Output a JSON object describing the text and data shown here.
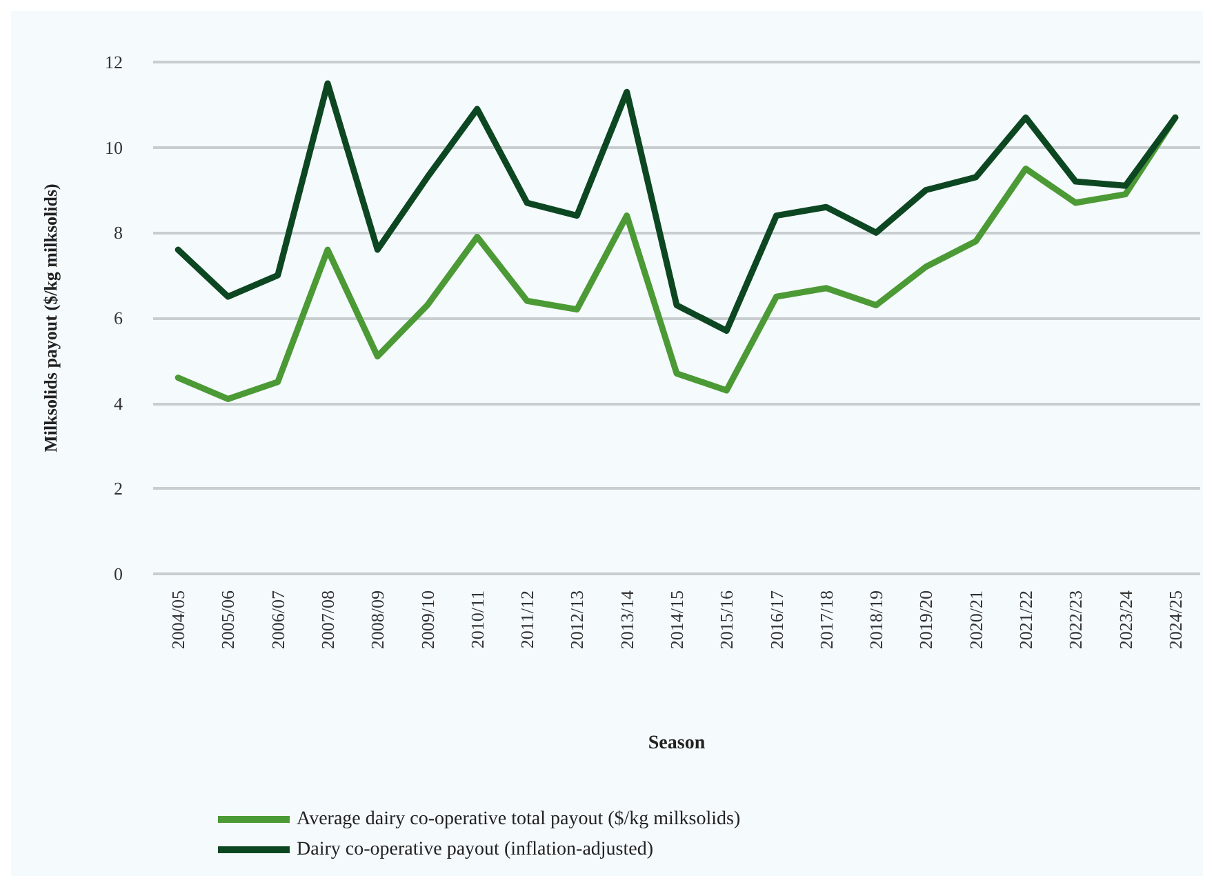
{
  "chart_data": {
    "type": "line",
    "xlabel": "Season",
    "ylabel": "Milksolids payout ($/kg milksolids)",
    "categories": [
      "2004/05",
      "2005/06",
      "2006/07",
      "2007/08",
      "2008/09",
      "2009/10",
      "2010/11",
      "2011/12",
      "2012/13",
      "2013/14",
      "2014/15",
      "2015/16",
      "2016/17",
      "2017/18",
      "2018/19",
      "2019/20",
      "2020/21",
      "2021/22",
      "2022/23",
      "2023/24",
      "2024/25"
    ],
    "series": [
      {
        "name": "Average dairy co-operative total payout ($/kg milksolids)",
        "color": "#4c9a35",
        "values": [
          4.6,
          4.1,
          4.5,
          7.6,
          5.1,
          6.3,
          7.9,
          6.4,
          6.2,
          8.4,
          4.7,
          4.3,
          6.5,
          6.7,
          6.3,
          7.2,
          7.8,
          9.5,
          8.7,
          8.9,
          10.7
        ]
      },
      {
        "name": "Dairy co-operative payout (inflation-adjusted)",
        "color": "#0d4722",
        "values": [
          7.6,
          6.5,
          7.0,
          11.5,
          7.6,
          9.3,
          10.9,
          8.7,
          8.4,
          11.3,
          6.3,
          5.7,
          8.4,
          8.6,
          8.0,
          9.0,
          9.3,
          10.7,
          9.2,
          9.1,
          10.7
        ]
      }
    ],
    "ylim": [
      0,
      12
    ],
    "yticks": [
      0,
      2,
      4,
      6,
      8,
      10,
      12
    ],
    "grid": "y",
    "legend": "bottom",
    "marker": "none",
    "line_style": "solid"
  }
}
